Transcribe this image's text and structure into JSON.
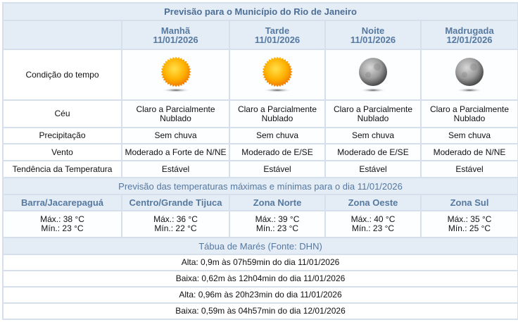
{
  "title": "Previsão para o Município do Rio de Janeiro",
  "periods": [
    {
      "name": "Manhã",
      "date": "11/01/2026",
      "icon": "sun-icon",
      "ceu": "Claro a Parcialmente Nublado",
      "precipitacao": "Sem chuva",
      "vento": "Moderado a Forte de N/NE",
      "tendencia": "Estável"
    },
    {
      "name": "Tarde",
      "date": "11/01/2026",
      "icon": "sun-icon",
      "ceu": "Claro a Parcialmente Nublado",
      "precipitacao": "Sem chuva",
      "vento": "Moderado de E/SE",
      "tendencia": "Estável"
    },
    {
      "name": "Noite",
      "date": "11/01/2026",
      "icon": "moon-icon",
      "ceu": "Claro a Parcialmente Nublado",
      "precipitacao": "Sem chuva",
      "vento": "Moderado de E/SE",
      "tendencia": "Estável"
    },
    {
      "name": "Madrugada",
      "date": "12/01/2026",
      "icon": "moon-icon",
      "ceu": "Claro a Parcialmente Nublado",
      "precipitacao": "Sem chuva",
      "vento": "Moderado de N/NE",
      "tendencia": "Estável"
    }
  ],
  "row_labels": {
    "condicao": "Condição do tempo",
    "ceu": "Céu",
    "precipitacao": "Precipitação",
    "vento": "Vento",
    "tendencia": "Tendência da Temperatura"
  },
  "temps_title": "Previsão das temperaturas máximas e mínimas para o dia 11/01/2026",
  "zones": [
    {
      "name": "Barra/Jacarepaguá",
      "max": "Máx.: 38 °C",
      "min": "Mín.: 23 °C"
    },
    {
      "name": "Centro/Grande Tijuca",
      "max": "Máx.: 36 °C",
      "min": "Mín.: 22 °C"
    },
    {
      "name": "Zona Norte",
      "max": "Máx.: 39 °C",
      "min": "Mín.: 23 °C"
    },
    {
      "name": "Zona Oeste",
      "max": "Máx.: 40 °C",
      "min": "Mín.: 23 °C"
    },
    {
      "name": "Zona Sul",
      "max": "Máx.: 35 °C",
      "min": "Mín.: 25 °C"
    }
  ],
  "tides_title": "Tábua de Marés (Fonte: DHN)",
  "tides": [
    "Alta: 0,9m às 07h59min do dia 11/01/2026",
    "Baixa: 0,62m às 12h04min do dia 11/01/2026",
    "Alta: 0,96m às 20h23min do dia 11/01/2026",
    "Baixa: 0,59m às 04h57min do dia 12/01/2026"
  ],
  "colors": {
    "header_bg": "#e4ecf6",
    "header_text": "#5679a0",
    "border": "#d6e0ec"
  }
}
